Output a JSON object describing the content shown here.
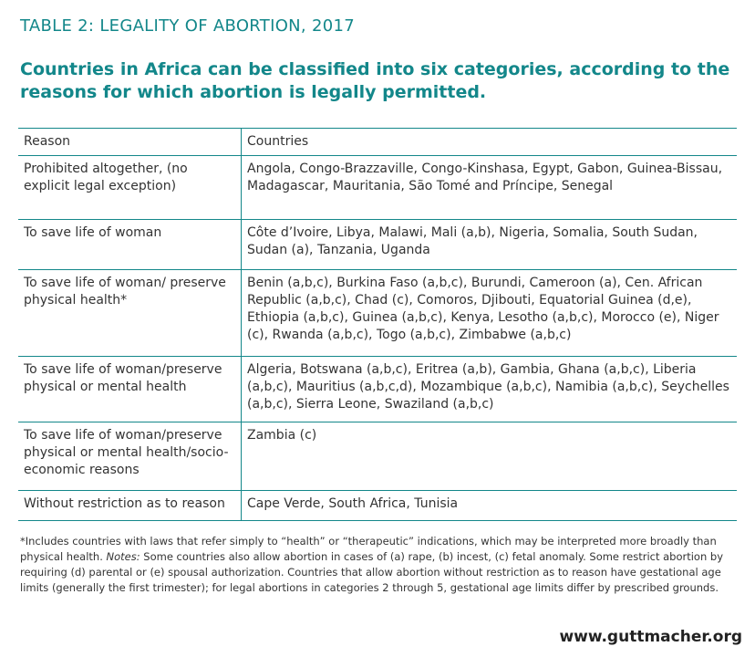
{
  "header": {
    "title": "TABLE 2: LEGALITY OF ABORTION, 2017",
    "subtitle": "Countries in Africa can be classified into six categories, according to the reasons for which abortion is legally permitted."
  },
  "table": {
    "columns": [
      "Reason",
      "Countries"
    ],
    "rows": [
      [
        "Prohibited altogether, (no explicit legal exception)",
        "Angola, Congo-Brazzaville, Congo-Kinshasa, Egypt, Gabon, Guinea-Bissau, Madagascar, Mauritania, São Tomé and Príncipe, Senegal"
      ],
      [
        "To save life of woman",
        "Côte d’Ivoire, Libya, Malawi, Mali (a,b), Nigeria, Somalia, South Sudan, Sudan (a), Tanzania, Uganda"
      ],
      [
        "To save life of woman/ preserve physical health*",
        "Benin (a,b,c), Burkina Faso (a,b,c), Burundi, Cameroon (a), Cen. African Republic (a,b,c), Chad (c), Comoros, Djibouti, Equatorial Guinea (d,e), Ethiopia (a,b,c), Guinea (a,b,c), Kenya, Lesotho (a,b,c), Morocco (e), Niger (c), Rwanda (a,b,c), Togo (a,b,c), Zimbabwe (a,b,c)"
      ],
      [
        "To save life of woman/preserve physical or mental health",
        "Algeria, Botswana (a,b,c), Eritrea (a,b), Gambia, Ghana (a,b,c), Liberia (a,b,c), Mauritius (a,b,c,d), Mozambique (a,b,c), Namibia (a,b,c), Seychelles (a,b,c), Sierra Leone, Swaziland (a,b,c)"
      ],
      [
        "To save life of woman/preserve physical or mental health/socio-economic reasons",
        "Zambia (c)"
      ],
      [
        "Without restriction as to reason",
        "Cape Verde, South Africa, Tunisia"
      ]
    ]
  },
  "footnote": {
    "intro": "*Includes countries with laws that refer simply to “health” or “therapeutic” indications, which may be interpreted more broadly than physical health.",
    "notes_label": "Notes:",
    "notes": "Some countries also allow abortion in cases of (a) rape, (b) incest, (c) fetal anomaly. Some restrict abortion by requiring (d) parental or (e) spousal authorization. Countries that allow abortion without restriction as to reason have gestational age limits (generally the first trimester); for legal abortions in categories 2 through 5, gestational age limits differ by prescribed grounds."
  },
  "footer": {
    "url": "www.guttmacher.org"
  }
}
